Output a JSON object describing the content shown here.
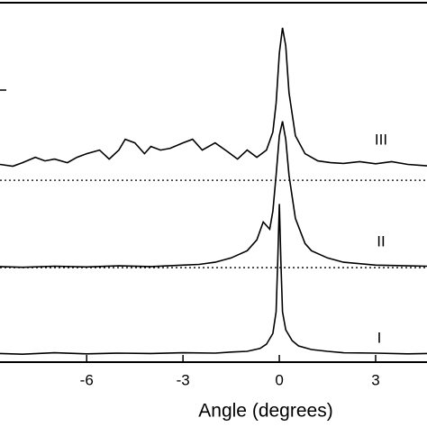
{
  "chart_data": {
    "type": "line",
    "x_label": "Angle (degrees)",
    "xlim": [
      -8.7,
      4.6
    ],
    "xticks": [
      -6,
      -3,
      0,
      3
    ],
    "ylim": [
      0,
      100
    ],
    "reference_lines": [
      50.6,
      26.3
    ],
    "series": [
      {
        "name": "I",
        "color": "#000000",
        "x": [
          -8.7,
          -8,
          -7,
          -6,
          -5,
          -4,
          -3,
          -2,
          -1.5,
          -1,
          -0.6,
          -0.4,
          -0.2,
          -0.1,
          -0.05,
          0,
          0.05,
          0.1,
          0.2,
          0.4,
          0.6,
          1,
          1.5,
          2,
          3,
          4,
          4.6
        ],
        "values": [
          2.4,
          2.2,
          2.6,
          2.3,
          2.5,
          2.4,
          2.6,
          2.5,
          2.8,
          3.0,
          3.8,
          5,
          8,
          14,
          28,
          44,
          28,
          14,
          9,
          6,
          4.5,
          3.5,
          3.0,
          2.6,
          2.5,
          2.3,
          2.4
        ]
      },
      {
        "name": "II",
        "color": "#000000",
        "x": [
          -8.7,
          -8,
          -7,
          -6,
          -5,
          -4,
          -3,
          -2.5,
          -2,
          -1.5,
          -1,
          -0.7,
          -0.5,
          -0.3,
          -0.2,
          -0.1,
          0,
          0.1,
          0.2,
          0.3,
          0.5,
          0.8,
          1,
          1.5,
          2,
          3,
          4,
          4.6
        ],
        "values": [
          26.6,
          26.4,
          26.7,
          26.5,
          26.8,
          26.6,
          27,
          27.2,
          27.8,
          29,
          31,
          34,
          39,
          37,
          42,
          52,
          63,
          67,
          62,
          52,
          40,
          33,
          31,
          29,
          27.8,
          27,
          26.8,
          26.7
        ]
      },
      {
        "name": "III",
        "color": "#000000",
        "x": [
          -8.7,
          -8.3,
          -8,
          -7.6,
          -7.3,
          -7,
          -6.6,
          -6.3,
          -6,
          -5.6,
          -5.3,
          -5,
          -4.8,
          -4.5,
          -4.2,
          -4,
          -3.7,
          -3.4,
          -3,
          -2.7,
          -2.4,
          -2,
          -1.6,
          -1.3,
          -1,
          -0.7,
          -0.4,
          -0.2,
          -0.1,
          0,
          0.1,
          0.2,
          0.3,
          0.5,
          0.8,
          1.2,
          1.6,
          2,
          2.5,
          3,
          3.5,
          4,
          4.6
        ],
        "values": [
          55,
          54.5,
          55.5,
          57,
          56,
          56.5,
          55.5,
          57,
          58,
          59,
          56.5,
          59,
          62,
          61,
          58,
          60,
          59,
          59.5,
          61,
          62,
          59,
          61,
          58.5,
          56.5,
          59,
          57,
          59,
          64,
          72,
          86,
          93,
          88,
          75,
          63,
          58,
          56,
          55.5,
          55.3,
          55.8,
          55.2,
          55.8,
          55,
          54.6
        ]
      }
    ]
  }
}
